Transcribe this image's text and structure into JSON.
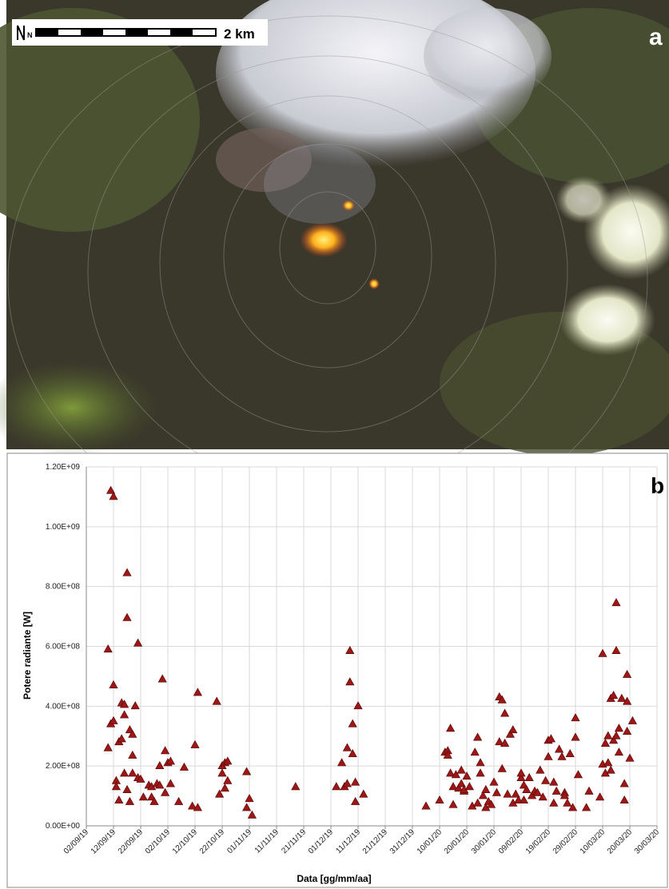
{
  "panel_a": {
    "label": "a",
    "scale_label": "2 km",
    "north_label": "N"
  },
  "chart_data": {
    "type": "scatter",
    "panel_label": "b",
    "x_label": "Data [gg/mm/aa]",
    "y_label": "Potere radiante [W]",
    "color": "#9e1616",
    "marker": "triangle",
    "grid": true,
    "xlim": [
      "2019-09-02",
      "2020-03-30"
    ],
    "xticks": [
      {
        "value": "2019-09-02",
        "label": "02/09/19"
      },
      {
        "value": "2019-09-12",
        "label": "12/09/19"
      },
      {
        "value": "2019-09-22",
        "label": "22/09/19"
      },
      {
        "value": "2019-10-02",
        "label": "02/10/19"
      },
      {
        "value": "2019-10-12",
        "label": "12/10/19"
      },
      {
        "value": "2019-10-22",
        "label": "22/10/19"
      },
      {
        "value": "2019-11-01",
        "label": "01/11/19"
      },
      {
        "value": "2019-11-11",
        "label": "11/11/19"
      },
      {
        "value": "2019-11-21",
        "label": "21/11/19"
      },
      {
        "value": "2019-12-01",
        "label": "01/12/19"
      },
      {
        "value": "2019-12-11",
        "label": "11/12/19"
      },
      {
        "value": "2019-12-21",
        "label": "21/12/19"
      },
      {
        "value": "2019-12-31",
        "label": "31/12/19"
      },
      {
        "value": "2020-01-10",
        "label": "10/01/20"
      },
      {
        "value": "2020-01-20",
        "label": "20/01/20"
      },
      {
        "value": "2020-01-30",
        "label": "30/01/20"
      },
      {
        "value": "2020-02-09",
        "label": "09/02/20"
      },
      {
        "value": "2020-02-19",
        "label": "19/02/20"
      },
      {
        "value": "2020-02-29",
        "label": "29/02/20"
      },
      {
        "value": "2020-03-10",
        "label": "10/03/20"
      },
      {
        "value": "2020-03-20",
        "label": "20/03/20"
      },
      {
        "value": "2020-03-30",
        "label": "30/03/20"
      }
    ],
    "ylim": [
      0,
      1200000000
    ],
    "yticks": [
      {
        "value": 0,
        "label": "0.00E+00"
      },
      {
        "value": 200000000,
        "label": "2.00E+08"
      },
      {
        "value": 400000000,
        "label": "4.00E+08"
      },
      {
        "value": 600000000,
        "label": "6.00E+08"
      },
      {
        "value": 800000000,
        "label": "8.00E+08"
      },
      {
        "value": 1000000000,
        "label": "1.00E+09"
      },
      {
        "value": 1200000000,
        "label": "1.20E+09"
      }
    ],
    "x": [
      "2019-09-11",
      "2019-09-12",
      "2019-09-10",
      "2019-09-10",
      "2019-09-11",
      "2019-09-12",
      "2019-09-12",
      "2019-09-13",
      "2019-09-13",
      "2019-09-14",
      "2019-09-14",
      "2019-09-15",
      "2019-09-15",
      "2019-09-16",
      "2019-09-16",
      "2019-09-16",
      "2019-09-17",
      "2019-09-17",
      "2019-09-17",
      "2019-09-18",
      "2019-09-18",
      "2019-09-19",
      "2019-09-19",
      "2019-09-19",
      "2019-09-20",
      "2019-09-21",
      "2019-09-21",
      "2019-09-22",
      "2019-09-23",
      "2019-09-25",
      "2019-09-26",
      "2019-09-26",
      "2019-09-27",
      "2019-09-28",
      "2019-09-29",
      "2019-09-29",
      "2019-09-30",
      "2019-10-01",
      "2019-10-01",
      "2019-10-02",
      "2019-10-03",
      "2019-10-03",
      "2019-10-06",
      "2019-10-08",
      "2019-10-11",
      "2019-10-12",
      "2019-10-13",
      "2019-10-13",
      "2019-10-20",
      "2019-10-21",
      "2019-10-22",
      "2019-10-22",
      "2019-10-23",
      "2019-10-23",
      "2019-10-24",
      "2019-10-24",
      "2019-10-31",
      "2019-10-31",
      "2019-11-01",
      "2019-11-02",
      "2019-11-18",
      "2019-12-03",
      "2019-12-05",
      "2019-12-06",
      "2019-12-07",
      "2019-12-07",
      "2019-12-08",
      "2019-12-08",
      "2019-12-09",
      "2019-12-09",
      "2019-12-10",
      "2019-12-10",
      "2019-12-11",
      "2019-12-13",
      "2020-01-05",
      "2020-01-10",
      "2020-01-12",
      "2020-01-13",
      "2020-01-13",
      "2020-01-14",
      "2020-01-14",
      "2020-01-15",
      "2020-01-15",
      "2020-01-16",
      "2020-01-17",
      "2020-01-18",
      "2020-01-18",
      "2020-01-19",
      "2020-01-19",
      "2020-01-20",
      "2020-01-21",
      "2020-01-22",
      "2020-01-23",
      "2020-01-24",
      "2020-01-24",
      "2020-01-25",
      "2020-01-25",
      "2020-01-26",
      "2020-01-27",
      "2020-01-27",
      "2020-01-28",
      "2020-01-29",
      "2020-01-30",
      "2020-01-31",
      "2020-02-01",
      "2020-02-01",
      "2020-02-02",
      "2020-02-02",
      "2020-02-03",
      "2020-02-03",
      "2020-02-04",
      "2020-02-05",
      "2020-02-06",
      "2020-02-06",
      "2020-02-07",
      "2020-02-08",
      "2020-02-09",
      "2020-02-09",
      "2020-02-10",
      "2020-02-10",
      "2020-02-11",
      "2020-02-12",
      "2020-02-13",
      "2020-02-14",
      "2020-02-15",
      "2020-02-16",
      "2020-02-17",
      "2020-02-18",
      "2020-02-19",
      "2020-02-19",
      "2020-02-20",
      "2020-02-21",
      "2020-02-21",
      "2020-02-22",
      "2020-02-23",
      "2020-02-24",
      "2020-02-25",
      "2020-02-25",
      "2020-02-26",
      "2020-02-27",
      "2020-02-28",
      "2020-02-29",
      "2020-02-29",
      "2020-03-01",
      "2020-03-04",
      "2020-03-05",
      "2020-03-09",
      "2020-03-10",
      "2020-03-10",
      "2020-03-11",
      "2020-03-11",
      "2020-03-12",
      "2020-03-12",
      "2020-03-13",
      "2020-03-13",
      "2020-03-14",
      "2020-03-14",
      "2020-03-15",
      "2020-03-15",
      "2020-03-15",
      "2020-03-16",
      "2020-03-16",
      "2020-03-17",
      "2020-03-18",
      "2020-03-18",
      "2020-03-19",
      "2020-03-19",
      "2020-03-19",
      "2020-03-20",
      "2020-03-21"
    ],
    "values": [
      1120000000,
      1100000000,
      590000000,
      260000000,
      340000000,
      350000000,
      470000000,
      150000000,
      130000000,
      85000000,
      280000000,
      290000000,
      410000000,
      370000000,
      175000000,
      405000000,
      845000000,
      695000000,
      120000000,
      320000000,
      80000000,
      305000000,
      235000000,
      175000000,
      400000000,
      610000000,
      160000000,
      155000000,
      95000000,
      135000000,
      95000000,
      130000000,
      80000000,
      140000000,
      135000000,
      200000000,
      490000000,
      250000000,
      110000000,
      210000000,
      215000000,
      140000000,
      80000000,
      195000000,
      65000000,
      270000000,
      445000000,
      60000000,
      415000000,
      105000000,
      200000000,
      175000000,
      210000000,
      125000000,
      215000000,
      150000000,
      180000000,
      60000000,
      90000000,
      35000000,
      130000000,
      130000000,
      210000000,
      130000000,
      140000000,
      260000000,
      585000000,
      480000000,
      340000000,
      240000000,
      80000000,
      145000000,
      400000000,
      105000000,
      65000000,
      85000000,
      245000000,
      250000000,
      235000000,
      325000000,
      175000000,
      130000000,
      70000000,
      170000000,
      125000000,
      185000000,
      140000000,
      115000000,
      120000000,
      165000000,
      130000000,
      65000000,
      245000000,
      295000000,
      75000000,
      210000000,
      175000000,
      100000000,
      120000000,
      60000000,
      80000000,
      70000000,
      145000000,
      110000000,
      430000000,
      280000000,
      420000000,
      190000000,
      375000000,
      275000000,
      105000000,
      305000000,
      320000000,
      75000000,
      105000000,
      85000000,
      160000000,
      175000000,
      85000000,
      135000000,
      120000000,
      160000000,
      100000000,
      115000000,
      110000000,
      185000000,
      95000000,
      150000000,
      230000000,
      285000000,
      290000000,
      145000000,
      75000000,
      115000000,
      255000000,
      230000000,
      110000000,
      100000000,
      75000000,
      240000000,
      60000000,
      360000000,
      295000000,
      170000000,
      60000000,
      115000000,
      95000000,
      575000000,
      205000000,
      175000000,
      275000000,
      210000000,
      300000000,
      425000000,
      185000000,
      435000000,
      285000000,
      745000000,
      585000000,
      300000000,
      325000000,
      245000000,
      425000000,
      140000000,
      85000000,
      505000000,
      315000000,
      415000000,
      225000000,
      350000000
    ]
  }
}
